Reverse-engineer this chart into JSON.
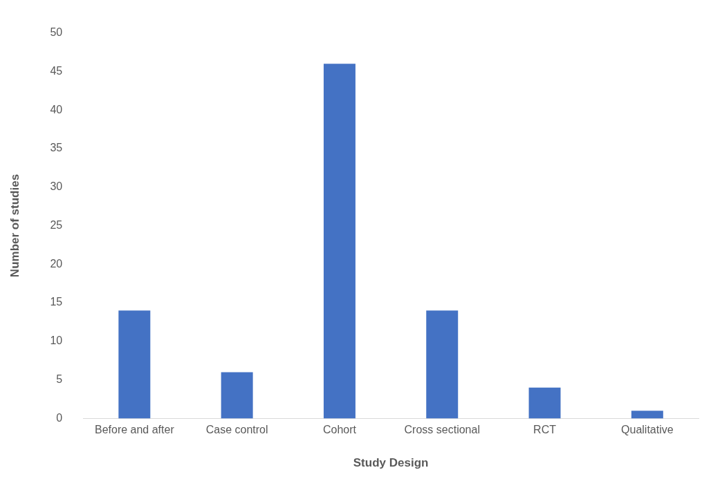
{
  "chart_data": {
    "type": "bar",
    "xlabel": "Study Design",
    "ylabel": "Number of studies",
    "categories": [
      "Before and after",
      "Case control",
      "Cohort",
      "Cross sectional",
      "RCT",
      "Qualitative"
    ],
    "values": [
      14,
      6,
      46,
      14,
      4,
      1
    ],
    "color": "#4472c4",
    "ylim": [
      0,
      50
    ],
    "yticks": [
      0,
      5,
      10,
      15,
      20,
      25,
      30,
      35,
      40,
      45,
      50
    ],
    "grid": false,
    "legend": false
  }
}
